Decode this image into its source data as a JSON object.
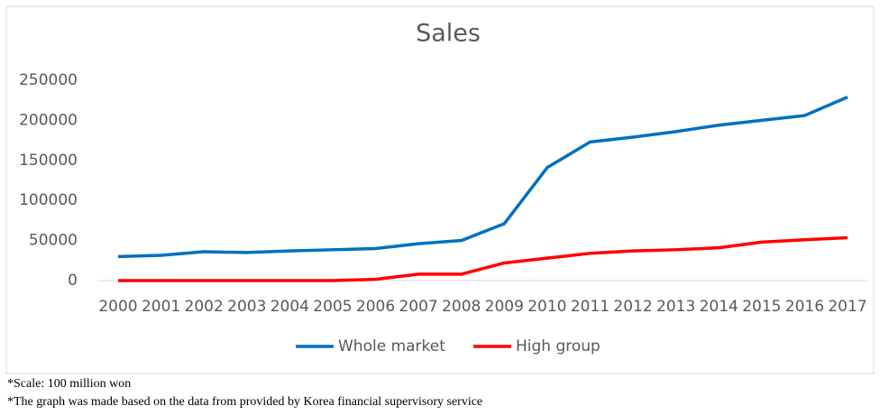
{
  "chart_data": {
    "type": "line",
    "title": "Sales",
    "categories": [
      "2000",
      "2001",
      "2002",
      "2003",
      "2004",
      "2005",
      "2006",
      "2007",
      "2008",
      "2009",
      "2010",
      "2011",
      "2012",
      "2013",
      "2014",
      "2015",
      "2016",
      "2017"
    ],
    "series": [
      {
        "name": "Whole market",
        "color": "#0070c0",
        "values": [
          30000,
          31500,
          36000,
          35000,
          37000,
          38500,
          40000,
          46000,
          50000,
          71000,
          141000,
          173000,
          179000,
          186000,
          194000,
          200000,
          206000,
          229000
        ]
      },
      {
        "name": "High group",
        "color": "#ff0000",
        "values": [
          0,
          0,
          0,
          0,
          0,
          0,
          1500,
          8000,
          8000,
          22000,
          28000,
          34000,
          37000,
          38500,
          41000,
          48000,
          51000,
          53500
        ]
      }
    ],
    "ylim": [
      0,
      250000
    ],
    "yticks": [
      0,
      50000,
      100000,
      150000,
      200000,
      250000
    ],
    "grid": false,
    "legend": "bottom",
    "notes": [
      "*Scale:  100 million won",
      "*The graph was made based on the data from provided by Korea financial supervisory service"
    ]
  }
}
